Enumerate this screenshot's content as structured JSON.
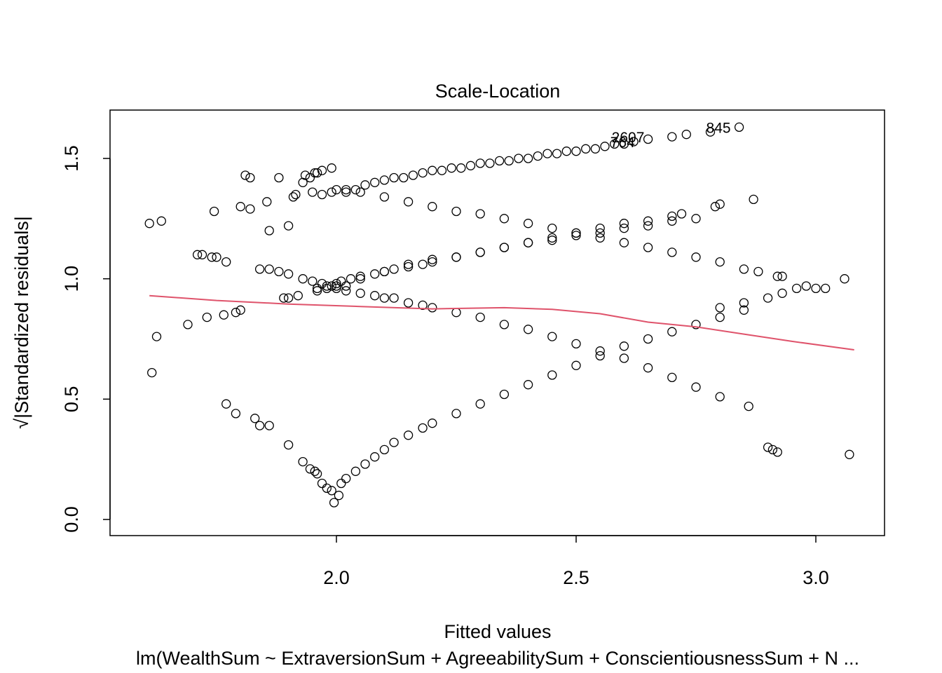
{
  "chart_data": {
    "type": "scatter",
    "title": "Scale-Location",
    "xlabel": "Fitted values",
    "ylabel": "√|Standardized residuals|",
    "caption": "lm(WealthSum ~ ExtraversionSum + AgreeabilitySum + ConscientiousnessSum + N ...",
    "xlim": [
      1.53,
      3.14
    ],
    "ylim": [
      0.0,
      1.7
    ],
    "x_ticks": [
      2.0,
      2.5,
      3.0
    ],
    "x_tick_labels": [
      "2.0",
      "2.5",
      "3.0"
    ],
    "y_ticks": [
      0.0,
      0.5,
      1.0,
      1.5
    ],
    "y_tick_labels": [
      "0.0",
      "0.5",
      "1.0",
      "1.5"
    ],
    "grid": false,
    "legend": "none",
    "point_color": "#000000",
    "smoother_color": "#DF536B",
    "annotations": [
      {
        "label": "845",
        "x": 2.84,
        "y": 1.63
      },
      {
        "label": "2607",
        "x": 2.66,
        "y": 1.59
      },
      {
        "label": "764",
        "x": 2.64,
        "y": 1.57
      }
    ],
    "smoother": {
      "x": [
        1.61,
        1.75,
        1.9,
        2.05,
        2.2,
        2.35,
        2.45,
        2.55,
        2.65,
        2.75,
        2.85,
        2.95,
        3.08
      ],
      "y": [
        0.93,
        0.91,
        0.895,
        0.885,
        0.875,
        0.88,
        0.873,
        0.855,
        0.82,
        0.8,
        0.77,
        0.74,
        0.705
      ]
    },
    "points": {
      "x": [
        1.61,
        1.615,
        1.625,
        1.635,
        1.69,
        1.72,
        1.73,
        1.745,
        1.75,
        1.765,
        1.79,
        1.8,
        1.81,
        1.82,
        1.84,
        1.855,
        1.88,
        1.9,
        1.91,
        1.915,
        1.93,
        1.935,
        1.945,
        1.955,
        1.96,
        1.97,
        1.99,
        2.02,
        2.04,
        2.06,
        2.08,
        2.1,
        2.12,
        2.14,
        2.16,
        2.18,
        2.2,
        2.22,
        2.24,
        2.26,
        2.28,
        2.3,
        2.32,
        2.34,
        2.36,
        2.38,
        2.4,
        2.42,
        2.44,
        2.46,
        2.48,
        2.5,
        2.52,
        2.54,
        2.56,
        2.58,
        2.6,
        2.62,
        2.65,
        2.7,
        2.73,
        2.78,
        2.84,
        1.84,
        1.86,
        1.88,
        1.9,
        1.93,
        1.95,
        1.97,
        1.99,
        2.0,
        2.02,
        2.05,
        2.08,
        2.1,
        2.12,
        2.15,
        2.18,
        2.2,
        2.25,
        2.3,
        2.35,
        2.4,
        2.45,
        2.5,
        2.55,
        2.6,
        2.65,
        2.7,
        2.75,
        2.8,
        2.86,
        1.96,
        1.98,
        2.0,
        2.01,
        2.03,
        2.05,
        2.08,
        2.1,
        2.12,
        2.15,
        2.18,
        2.2,
        2.25,
        2.3,
        2.35,
        2.4,
        2.45,
        2.5,
        2.55,
        2.6,
        2.65,
        2.7,
        2.72,
        1.86,
        1.9,
        1.95,
        1.97,
        1.99,
        2.0,
        2.02,
        2.05,
        2.1,
        2.15,
        2.2,
        2.25,
        2.3,
        2.35,
        2.4,
        2.45,
        2.5,
        2.55,
        2.6,
        2.65,
        2.7,
        2.75,
        2.8,
        2.85,
        1.77,
        1.79,
        1.83,
        1.86,
        1.9,
        1.93,
        1.945,
        1.955,
        1.96,
        1.97,
        1.98,
        1.99,
        1.995,
        2.005,
        2.01,
        2.02,
        2.04,
        2.06,
        2.08,
        2.1,
        2.12,
        2.15,
        2.18,
        2.2,
        2.25,
        2.3,
        2.35,
        2.4,
        2.45,
        2.5,
        2.55,
        2.6,
        2.65,
        2.7,
        2.75,
        2.8,
        2.85,
        1.71,
        1.74,
        1.77,
        1.8,
        1.82,
        1.89,
        1.92,
        1.96,
        1.98,
        2.0,
        2.02,
        2.05,
        2.1,
        2.15,
        2.2,
        2.25,
        2.3,
        2.35,
        2.4,
        2.45,
        2.5,
        2.55,
        2.6,
        2.65,
        2.7,
        2.75,
        2.8,
        2.85,
        2.9,
        2.93,
        2.79,
        2.8,
        2.87,
        2.88,
        2.92,
        2.93,
        2.96,
        2.98,
        3.0,
        3.02,
        3.06,
        2.9,
        2.91,
        2.92,
        3.07
      ],
      "y": [
        1.23,
        0.61,
        0.76,
        1.24,
        0.81,
        1.1,
        0.84,
        1.28,
        1.09,
        0.85,
        0.86,
        0.87,
        1.43,
        1.42,
        0.39,
        1.32,
        1.42,
        0.92,
        1.34,
        1.35,
        1.4,
        1.43,
        1.42,
        1.44,
        1.44,
        1.45,
        1.46,
        1.37,
        1.37,
        1.39,
        1.4,
        1.41,
        1.42,
        1.42,
        1.43,
        1.44,
        1.45,
        1.45,
        1.46,
        1.46,
        1.47,
        1.48,
        1.48,
        1.49,
        1.49,
        1.5,
        1.5,
        1.51,
        1.52,
        1.52,
        1.53,
        1.53,
        1.54,
        1.54,
        1.55,
        1.56,
        1.56,
        1.57,
        1.58,
        1.59,
        1.6,
        1.61,
        1.63,
        1.04,
        1.04,
        1.03,
        1.02,
        1.0,
        0.99,
        0.98,
        0.97,
        0.96,
        0.95,
        0.94,
        0.93,
        0.92,
        0.92,
        0.9,
        0.89,
        0.88,
        0.86,
        0.84,
        0.81,
        0.79,
        0.76,
        0.73,
        0.7,
        0.67,
        0.63,
        0.59,
        0.55,
        0.51,
        0.47,
        0.96,
        0.97,
        0.98,
        0.99,
        1.0,
        1.01,
        1.02,
        1.03,
        1.04,
        1.05,
        1.06,
        1.07,
        1.09,
        1.11,
        1.13,
        1.15,
        1.17,
        1.19,
        1.21,
        1.23,
        1.24,
        1.26,
        1.27,
        1.2,
        1.22,
        1.36,
        1.35,
        1.36,
        1.37,
        1.36,
        1.36,
        1.34,
        1.32,
        1.3,
        1.28,
        1.27,
        1.25,
        1.23,
        1.21,
        1.19,
        1.17,
        1.15,
        1.13,
        1.11,
        1.09,
        1.07,
        1.04,
        0.48,
        0.44,
        0.42,
        0.39,
        0.31,
        0.24,
        0.21,
        0.2,
        0.19,
        0.15,
        0.13,
        0.12,
        0.07,
        0.1,
        0.15,
        0.17,
        0.2,
        0.23,
        0.26,
        0.29,
        0.32,
        0.35,
        0.38,
        0.4,
        0.44,
        0.48,
        0.52,
        0.56,
        0.6,
        0.64,
        0.68,
        0.72,
        0.75,
        0.78,
        0.81,
        0.84,
        0.87,
        1.1,
        1.09,
        1.07,
        1.3,
        1.29,
        0.92,
        0.93,
        0.95,
        0.96,
        0.97,
        0.97,
        1.0,
        1.03,
        1.06,
        1.08,
        1.09,
        1.11,
        1.13,
        1.15,
        1.16,
        1.18,
        1.19,
        1.21,
        1.22,
        1.24,
        1.25,
        0.88,
        0.9,
        0.92,
        0.94,
        1.3,
        1.31,
        1.33,
        1.03,
        1.01,
        1.01,
        0.96,
        0.97,
        0.96,
        0.96,
        1.0,
        0.3,
        0.29,
        0.28,
        0.27
      ]
    }
  }
}
